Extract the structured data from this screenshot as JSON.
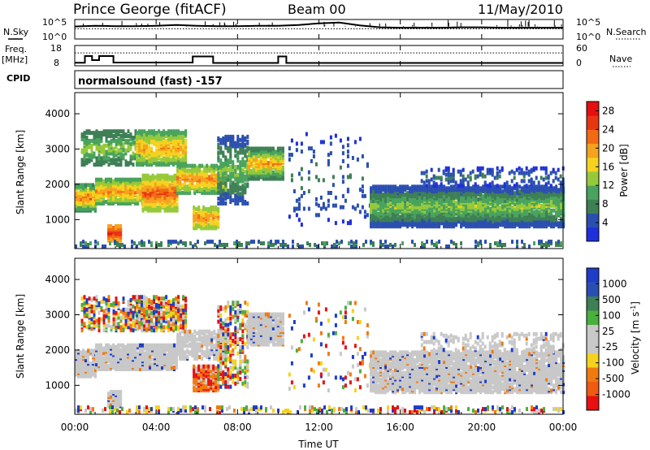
{
  "header": {
    "station": "Prince George (fitACF)",
    "beam": "Beam 00",
    "date": "11/May/2010"
  },
  "side_labels": {
    "nsky": "N.Sky",
    "nsearch": "N.Search",
    "freq": "Freq.",
    "freq_unit": "[MHz]",
    "nave": "Nave",
    "cpid": "CPID",
    "cpid_value": "normalsound (fast) -157"
  },
  "colors": {
    "power": [
      "#1f2fdc",
      "#2b4fb0",
      "#3e7f55",
      "#49a35d",
      "#96c93a",
      "#f5d21e",
      "#f5a21e",
      "#f26a14",
      "#e83512",
      "#e60f0f"
    ],
    "velocity_blue": "#1e3cc8",
    "velocity_green": "#48b03c",
    "velocity_grey": "#c8c8c8",
    "velocity_orange": "#f07a10",
    "velocity_red": "#e81010"
  },
  "chart_data": [
    {
      "type": "line",
      "name": "noise",
      "left_ticks": [
        "10^5",
        "10^0"
      ],
      "right_ticks": [
        "10^5",
        "10^0"
      ],
      "series": [
        {
          "name": "N.Sky",
          "style": "solid"
        },
        {
          "name": "N.Search",
          "style": "dotted"
        }
      ],
      "x": [
        0,
        1,
        2,
        3,
        4,
        5,
        6,
        7,
        8,
        9,
        10,
        11,
        12,
        13,
        14,
        15,
        16,
        17,
        18,
        19,
        20,
        21,
        22,
        23,
        24
      ],
      "nsky": [
        3.2,
        3.4,
        3.3,
        3.3,
        3.4,
        3.6,
        3.4,
        3.3,
        3.3,
        3.4,
        3.4,
        3.6,
        4.0,
        4.2,
        3.5,
        3.0,
        2.9,
        2.9,
        2.9,
        3.0,
        3.0,
        2.9,
        2.9,
        2.9,
        2.9
      ]
    },
    {
      "type": "line",
      "name": "frequency",
      "left_ticks": [
        "18",
        "8"
      ],
      "right_ticks": [
        "60",
        "0"
      ],
      "series": [
        {
          "name": "Freq.",
          "style": "solid"
        },
        {
          "name": "Nave",
          "style": "dotted"
        }
      ],
      "freq_steps": [
        {
          "t0": 0.0,
          "t1": 0.5,
          "f": 9.5
        },
        {
          "t0": 0.5,
          "t1": 0.85,
          "f": 12.8
        },
        {
          "t0": 0.85,
          "t1": 1.2,
          "f": 10.8
        },
        {
          "t0": 1.2,
          "t1": 1.9,
          "f": 12.8
        },
        {
          "t0": 1.9,
          "t1": 5.8,
          "f": 9.6
        },
        {
          "t0": 5.8,
          "t1": 6.8,
          "f": 12.6
        },
        {
          "t0": 6.8,
          "t1": 10.0,
          "f": 9.4
        },
        {
          "t0": 10.0,
          "t1": 10.4,
          "f": 12.6
        },
        {
          "t0": 10.4,
          "t1": 24.0,
          "f": 9.4
        }
      ],
      "nave": 38
    },
    {
      "type": "heatmap",
      "name": "power",
      "ylabel": "Slant Range [km]",
      "yticks": [
        1000,
        2000,
        3000,
        4000
      ],
      "ylim": [
        180,
        4600
      ],
      "colorbar": {
        "label": "Power [dB]",
        "ticks": [
          4,
          8,
          12,
          16,
          20,
          24,
          28
        ],
        "range": [
          0,
          30
        ]
      },
      "regions": [
        {
          "t0": 0.0,
          "t1": 1.0,
          "r0": 1200,
          "r1": 1950,
          "v0": 8,
          "v1": 26,
          "d": 0.9
        },
        {
          "t0": 0.3,
          "t1": 3.3,
          "r0": 2500,
          "r1": 3450,
          "v0": 6,
          "v1": 16,
          "d": 0.55
        },
        {
          "t0": 1.0,
          "t1": 3.5,
          "r0": 1400,
          "r1": 2100,
          "v0": 10,
          "v1": 24,
          "d": 0.85
        },
        {
          "t0": 1.6,
          "t1": 2.2,
          "r0": 350,
          "r1": 800,
          "v0": 18,
          "v1": 28,
          "d": 0.9
        },
        {
          "t0": 3.0,
          "t1": 5.5,
          "r0": 2500,
          "r1": 3450,
          "v0": 10,
          "v1": 22,
          "d": 0.75
        },
        {
          "t0": 3.3,
          "t1": 5.0,
          "r0": 1200,
          "r1": 2200,
          "v0": 12,
          "v1": 27,
          "d": 0.85
        },
        {
          "t0": 5.0,
          "t1": 7.5,
          "r0": 1700,
          "r1": 2500,
          "v0": 10,
          "v1": 24,
          "d": 0.75
        },
        {
          "t0": 5.8,
          "t1": 7.0,
          "r0": 700,
          "r1": 1300,
          "v0": 12,
          "v1": 24,
          "d": 0.8
        },
        {
          "t0": 7.0,
          "t1": 8.5,
          "r0": 1400,
          "r1": 3300,
          "v0": 4,
          "v1": 14,
          "d": 0.5
        },
        {
          "t0": 8.5,
          "t1": 10.2,
          "r0": 2100,
          "r1": 3000,
          "v0": 6,
          "v1": 24,
          "d": 0.9
        },
        {
          "t0": 10.5,
          "t1": 14.5,
          "r0": 800,
          "r1": 3400,
          "v0": 2,
          "v1": 8,
          "d": 0.06
        },
        {
          "t0": 14.5,
          "t1": 24.0,
          "r0": 750,
          "r1": 1900,
          "v0": 3,
          "v1": 16,
          "d": 0.85
        },
        {
          "t0": 17.0,
          "t1": 24.0,
          "r0": 1900,
          "r1": 2400,
          "v0": 2,
          "v1": 8,
          "d": 0.25
        },
        {
          "t0": 0.0,
          "t1": 24.0,
          "r0": 180,
          "r1": 330,
          "v0": 3,
          "v1": 12,
          "d": 0.25
        }
      ]
    },
    {
      "type": "heatmap",
      "name": "velocity",
      "ylabel": "Slant Range [km]",
      "yticks": [
        1000,
        2000,
        3000,
        4000
      ],
      "ylim": [
        180,
        4600
      ],
      "colorbar": {
        "label": "Velocity [m s^-1]",
        "ticks": [
          1000,
          500,
          100,
          25,
          -25,
          -100,
          -500,
          -1000
        ]
      },
      "regions": [
        {
          "t0": 0.0,
          "t1": 1.0,
          "r0": 1200,
          "r1": 1950,
          "kind": "ground",
          "d": 0.85
        },
        {
          "t0": 0.3,
          "t1": 3.3,
          "r0": 2500,
          "r1": 3450,
          "kind": "mixed",
          "d": 0.45
        },
        {
          "t0": 1.0,
          "t1": 5.0,
          "r0": 1400,
          "r1": 2100,
          "kind": "ground",
          "d": 0.85
        },
        {
          "t0": 1.6,
          "t1": 2.2,
          "r0": 350,
          "r1": 800,
          "kind": "ground",
          "d": 0.85
        },
        {
          "t0": 3.0,
          "t1": 5.5,
          "r0": 2500,
          "r1": 3450,
          "kind": "mixed",
          "d": 0.6
        },
        {
          "t0": 5.0,
          "t1": 7.5,
          "r0": 1700,
          "r1": 2500,
          "kind": "ground",
          "d": 0.7
        },
        {
          "t0": 5.8,
          "t1": 7.0,
          "r0": 800,
          "r1": 1500,
          "kind": "neg",
          "d": 0.85
        },
        {
          "t0": 7.0,
          "t1": 8.5,
          "r0": 900,
          "r1": 3300,
          "kind": "mixed",
          "d": 0.35
        },
        {
          "t0": 8.5,
          "t1": 10.2,
          "r0": 2100,
          "r1": 3000,
          "kind": "ground",
          "d": 0.85
        },
        {
          "t0": 10.5,
          "t1": 14.5,
          "r0": 800,
          "r1": 3400,
          "kind": "mixed",
          "d": 0.05
        },
        {
          "t0": 14.5,
          "t1": 24.0,
          "r0": 750,
          "r1": 1900,
          "kind": "ground",
          "d": 0.8
        },
        {
          "t0": 17.0,
          "t1": 24.0,
          "r0": 1900,
          "r1": 2400,
          "kind": "ground",
          "d": 0.25
        },
        {
          "t0": 0.0,
          "t1": 24.0,
          "r0": 180,
          "r1": 330,
          "kind": "mixed",
          "d": 0.3
        }
      ]
    }
  ],
  "x_axis": {
    "label": "Time UT",
    "ticks": [
      "00:00",
      "04:00",
      "08:00",
      "12:00",
      "16:00",
      "20:00",
      "00:00"
    ],
    "range": [
      0,
      24
    ]
  }
}
